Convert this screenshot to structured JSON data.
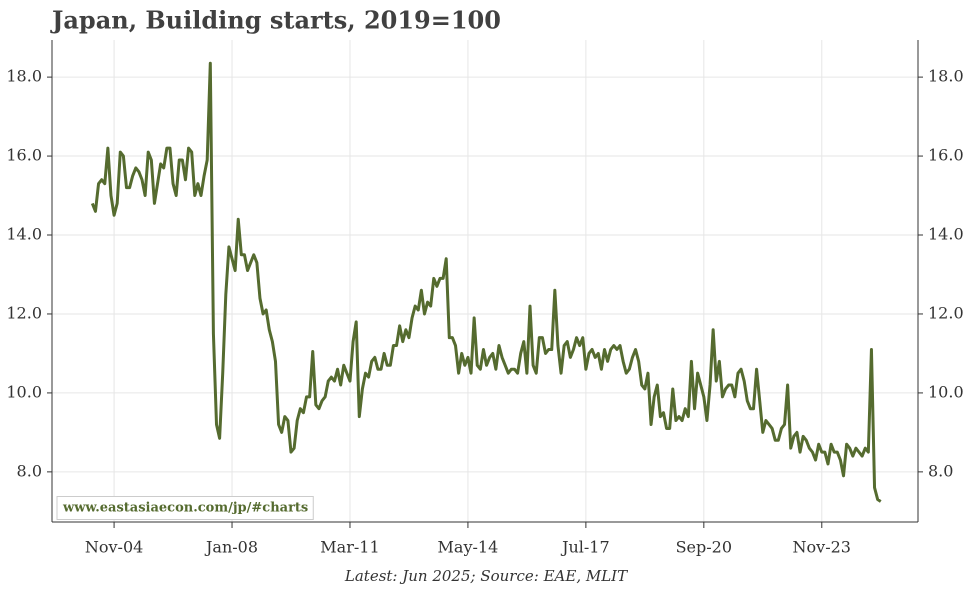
{
  "chart_data": {
    "type": "line",
    "title": "Japan, Building starts, 2019=100",
    "source": "Latest: Jun 2025; Source: EAE, MLIT",
    "watermark": "www.eastasiaecon.com/jp/#charts",
    "grid": true,
    "xlim": [
      "2003-03",
      "2026-06"
    ],
    "xticks": [
      {
        "value": "2004-11",
        "label": "Nov-04"
      },
      {
        "value": "2008-01",
        "label": "Jan-08"
      },
      {
        "value": "2011-03",
        "label": "Mar-11"
      },
      {
        "value": "2014-05",
        "label": "May-14"
      },
      {
        "value": "2017-07",
        "label": "Jul-17"
      },
      {
        "value": "2020-09",
        "label": "Sep-20"
      },
      {
        "value": "2023-11",
        "label": "Nov-23"
      }
    ],
    "ylim": [
      6.73,
      18.94
    ],
    "yticks": [
      {
        "value": 8,
        "label": "8.0"
      },
      {
        "value": 10,
        "label": "10.0"
      },
      {
        "value": 12,
        "label": "12.0"
      },
      {
        "value": 14,
        "label": "14.0"
      },
      {
        "value": 16,
        "label": "16.0"
      },
      {
        "value": 18,
        "label": "18.0"
      }
    ],
    "x": [
      "2004-04",
      "2004-05",
      "2004-06",
      "2004-07",
      "2004-08",
      "2004-09",
      "2004-10",
      "2004-11",
      "2004-12",
      "2005-01",
      "2005-02",
      "2005-03",
      "2005-04",
      "2005-05",
      "2005-06",
      "2005-07",
      "2005-08",
      "2005-09",
      "2005-10",
      "2005-11",
      "2005-12",
      "2006-01",
      "2006-02",
      "2006-03",
      "2006-04",
      "2006-05",
      "2006-06",
      "2006-07",
      "2006-08",
      "2006-09",
      "2006-10",
      "2006-11",
      "2006-12",
      "2007-01",
      "2007-02",
      "2007-03",
      "2007-04",
      "2007-05",
      "2007-06",
      "2007-07",
      "2007-08",
      "2007-09",
      "2007-10",
      "2007-11",
      "2007-12",
      "2008-01",
      "2008-02",
      "2008-03",
      "2008-04",
      "2008-05",
      "2008-06",
      "2008-07",
      "2008-08",
      "2008-09",
      "2008-10",
      "2008-11",
      "2008-12",
      "2009-01",
      "2009-02",
      "2009-03",
      "2009-04",
      "2009-05",
      "2009-06",
      "2009-07",
      "2009-08",
      "2009-09",
      "2009-10",
      "2009-11",
      "2009-12",
      "2010-01",
      "2010-02",
      "2010-03",
      "2010-04",
      "2010-05",
      "2010-06",
      "2010-07",
      "2010-08",
      "2010-09",
      "2010-10",
      "2010-11",
      "2010-12",
      "2011-01",
      "2011-02",
      "2011-03",
      "2011-04",
      "2011-05",
      "2011-06",
      "2011-07",
      "2011-08",
      "2011-09",
      "2011-10",
      "2011-11",
      "2011-12",
      "2012-01",
      "2012-02",
      "2012-03",
      "2012-04",
      "2012-05",
      "2012-06",
      "2012-07",
      "2012-08",
      "2012-09",
      "2012-10",
      "2012-11",
      "2012-12",
      "2013-01",
      "2013-02",
      "2013-03",
      "2013-04",
      "2013-05",
      "2013-06",
      "2013-07",
      "2013-08",
      "2013-09",
      "2013-10",
      "2013-11",
      "2013-12",
      "2014-01",
      "2014-02",
      "2014-03",
      "2014-04",
      "2014-05",
      "2014-06",
      "2014-07",
      "2014-08",
      "2014-09",
      "2014-10",
      "2014-11",
      "2014-12",
      "2015-01",
      "2015-02",
      "2015-03",
      "2015-04",
      "2015-05",
      "2015-06",
      "2015-07",
      "2015-08",
      "2015-09",
      "2015-10",
      "2015-11",
      "2015-12",
      "2016-01",
      "2016-02",
      "2016-03",
      "2016-04",
      "2016-05",
      "2016-06",
      "2016-07",
      "2016-08",
      "2016-09",
      "2016-10",
      "2016-11",
      "2016-12",
      "2017-01",
      "2017-02",
      "2017-03",
      "2017-04",
      "2017-05",
      "2017-06",
      "2017-07",
      "2017-08",
      "2017-09",
      "2017-10",
      "2017-11",
      "2017-12",
      "2018-01",
      "2018-02",
      "2018-03",
      "2018-04",
      "2018-05",
      "2018-06",
      "2018-07",
      "2018-08",
      "2018-09",
      "2018-10",
      "2018-11",
      "2018-12",
      "2019-01",
      "2019-02",
      "2019-03",
      "2019-04",
      "2019-05",
      "2019-06",
      "2019-07",
      "2019-08",
      "2019-09",
      "2019-10",
      "2019-11",
      "2019-12",
      "2020-01",
      "2020-02",
      "2020-03",
      "2020-04",
      "2020-05",
      "2020-06",
      "2020-07",
      "2020-08",
      "2020-09",
      "2020-10",
      "2020-11",
      "2020-12",
      "2021-01",
      "2021-02",
      "2021-03",
      "2021-04",
      "2021-05",
      "2021-06",
      "2021-07",
      "2021-08",
      "2021-09",
      "2021-10",
      "2021-11",
      "2021-12",
      "2022-01",
      "2022-02",
      "2022-03",
      "2022-04",
      "2022-05",
      "2022-06",
      "2022-07",
      "2022-08",
      "2022-09",
      "2022-10",
      "2022-11",
      "2022-12",
      "2023-01",
      "2023-02",
      "2023-03",
      "2023-04",
      "2023-05",
      "2023-06",
      "2023-07",
      "2023-08",
      "2023-09",
      "2023-10",
      "2023-11",
      "2023-12",
      "2024-01",
      "2024-02",
      "2024-03",
      "2024-04",
      "2024-05",
      "2024-06",
      "2024-07",
      "2024-08",
      "2024-09",
      "2024-10",
      "2024-11",
      "2024-12",
      "2025-01",
      "2025-02",
      "2025-03",
      "2025-04",
      "2025-05",
      "2025-06"
    ],
    "series": [
      {
        "color": "#556b2f",
        "values": [
          14.8,
          14.6,
          15.3,
          15.4,
          15.3,
          16.2,
          15.0,
          14.5,
          14.8,
          16.1,
          16.0,
          15.2,
          15.2,
          15.5,
          15.7,
          15.6,
          15.4,
          15.0,
          16.1,
          15.9,
          14.8,
          15.3,
          15.8,
          15.7,
          16.2,
          16.2,
          15.3,
          15.0,
          15.9,
          15.9,
          15.4,
          16.2,
          16.1,
          15.0,
          15.3,
          15.0,
          15.5,
          15.9,
          18.35,
          11.5,
          9.2,
          8.85,
          10.5,
          12.5,
          13.7,
          13.4,
          13.1,
          14.4,
          13.5,
          13.5,
          13.1,
          13.3,
          13.5,
          13.3,
          12.4,
          12.0,
          12.1,
          11.6,
          11.3,
          10.8,
          9.2,
          9.0,
          9.4,
          9.3,
          8.5,
          8.6,
          9.3,
          9.6,
          9.5,
          9.9,
          9.9,
          11.05,
          9.7,
          9.6,
          9.8,
          9.9,
          10.3,
          10.4,
          10.3,
          10.6,
          10.2,
          10.7,
          10.5,
          10.3,
          11.3,
          11.8,
          9.4,
          10.1,
          10.5,
          10.4,
          10.8,
          10.9,
          10.6,
          10.6,
          11.0,
          10.7,
          10.7,
          11.2,
          11.2,
          11.7,
          11.3,
          11.6,
          11.4,
          11.9,
          12.2,
          12.1,
          12.6,
          12.0,
          12.3,
          12.2,
          12.9,
          12.7,
          12.9,
          12.9,
          13.4,
          11.4,
          11.4,
          11.2,
          10.5,
          11.0,
          10.7,
          10.9,
          10.5,
          11.9,
          10.7,
          10.6,
          11.1,
          10.7,
          10.9,
          11.0,
          10.6,
          11.2,
          10.9,
          10.7,
          10.5,
          10.6,
          10.6,
          10.5,
          11.0,
          11.3,
          10.5,
          12.2,
          10.7,
          10.5,
          11.4,
          11.4,
          11.0,
          11.1,
          11.1,
          12.6,
          11.2,
          10.5,
          11.2,
          11.3,
          10.9,
          11.1,
          11.4,
          11.2,
          11.4,
          10.6,
          11.0,
          11.1,
          10.9,
          11.0,
          10.6,
          11.1,
          10.8,
          11.1,
          11.2,
          11.1,
          11.2,
          10.8,
          10.5,
          10.6,
          10.9,
          11.1,
          10.8,
          10.2,
          10.1,
          10.5,
          9.2,
          9.9,
          10.2,
          9.4,
          9.5,
          9.1,
          9.1,
          10.1,
          9.3,
          9.4,
          9.3,
          9.6,
          9.4,
          10.8,
          9.6,
          10.5,
          10.2,
          9.9,
          9.3,
          10.2,
          11.6,
          10.3,
          10.8,
          9.9,
          10.1,
          10.2,
          10.2,
          9.9,
          10.5,
          10.6,
          10.3,
          9.8,
          9.6,
          9.6,
          10.6,
          9.8,
          9.0,
          9.3,
          9.2,
          9.1,
          8.8,
          8.8,
          9.1,
          9.2,
          10.2,
          8.6,
          8.9,
          9.0,
          8.5,
          8.9,
          8.8,
          8.6,
          8.5,
          8.3,
          8.7,
          8.5,
          8.5,
          8.2,
          8.7,
          8.5,
          8.5,
          8.3,
          7.9,
          8.7,
          8.6,
          8.4,
          8.6,
          8.5,
          8.4,
          8.6,
          8.5,
          11.1,
          7.6,
          7.3,
          7.25
        ]
      }
    ]
  }
}
